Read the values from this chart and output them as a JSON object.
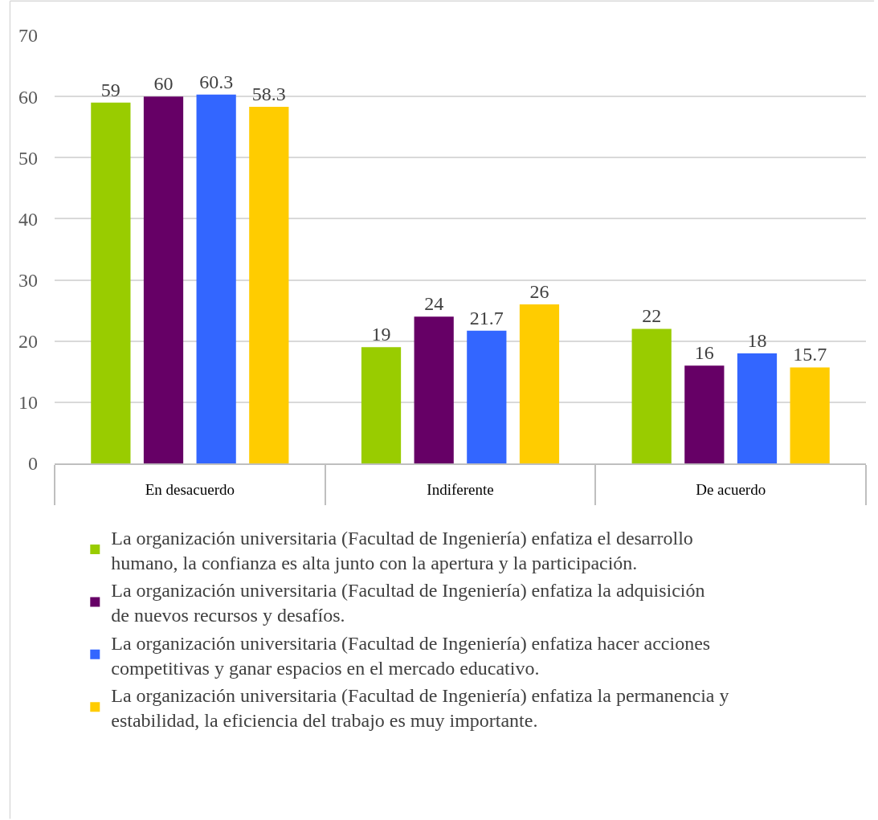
{
  "chart_data": {
    "type": "bar",
    "categories": [
      "En desacuerdo",
      "Indiferente",
      "De acuerdo"
    ],
    "series": [
      {
        "name": "La organización universitaria (Facultad de Ingeniería) enfatiza el desarrollo humano, la confianza es alta junto con la apertura y la participación.",
        "color": "#99cc00",
        "values": [
          59,
          19,
          22
        ]
      },
      {
        "name": "La organización universitaria (Facultad de Ingeniería) enfatiza la adquisición de nuevos recursos y desafíos.",
        "color": "#660066",
        "values": [
          60,
          24,
          16
        ]
      },
      {
        "name": "La organización universitaria (Facultad de Ingeniería) enfatiza hacer acciones competitivas y ganar espacios en el mercado educativo.",
        "color": "#3366ff",
        "values": [
          60.3,
          21.7,
          18
        ]
      },
      {
        "name": "La organización universitaria (Facultad de Ingeniería) enfatiza la permanencia y estabilidad, la eficiencia del trabajo es muy importante.",
        "color": "#ffcc00",
        "values": [
          58.3,
          26,
          15.7
        ]
      }
    ],
    "ylim": [
      0,
      70
    ],
    "yticks": [
      0,
      10,
      20,
      30,
      40,
      50,
      60,
      70
    ],
    "grid": "y",
    "legend": "bottom",
    "data_labels": true
  }
}
